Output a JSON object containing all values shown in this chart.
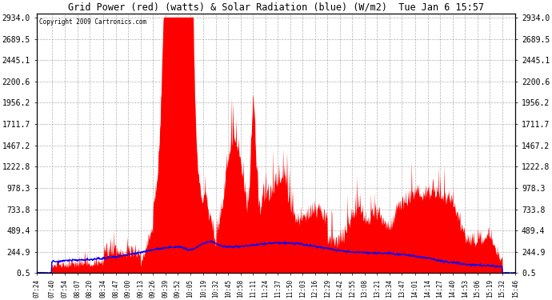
{
  "title": "Grid Power (red) (watts) & Solar Radiation (blue) (W/m2)  Tue Jan 6 15:57",
  "copyright": "Copyright 2009 Cartronics.com",
  "background_color": "#ffffff",
  "plot_bg_color": "#ffffff",
  "grid_color": "#aaaaaa",
  "yticks": [
    0.5,
    244.9,
    489.4,
    733.8,
    978.3,
    1222.8,
    1467.2,
    1711.7,
    1956.2,
    2200.6,
    2445.1,
    2689.5,
    2934.0
  ],
  "ylim": [
    0,
    2980
  ],
  "x_labels": [
    "07:24",
    "07:40",
    "07:54",
    "08:07",
    "08:20",
    "08:34",
    "08:47",
    "09:00",
    "09:13",
    "09:26",
    "09:39",
    "09:52",
    "10:05",
    "10:19",
    "10:32",
    "10:45",
    "10:58",
    "11:11",
    "11:24",
    "11:37",
    "11:50",
    "12:03",
    "12:16",
    "12:29",
    "12:42",
    "12:55",
    "13:08",
    "13:21",
    "13:34",
    "13:47",
    "14:01",
    "14:14",
    "14:27",
    "14:40",
    "14:53",
    "15:06",
    "15:19",
    "15:32",
    "15:46"
  ]
}
